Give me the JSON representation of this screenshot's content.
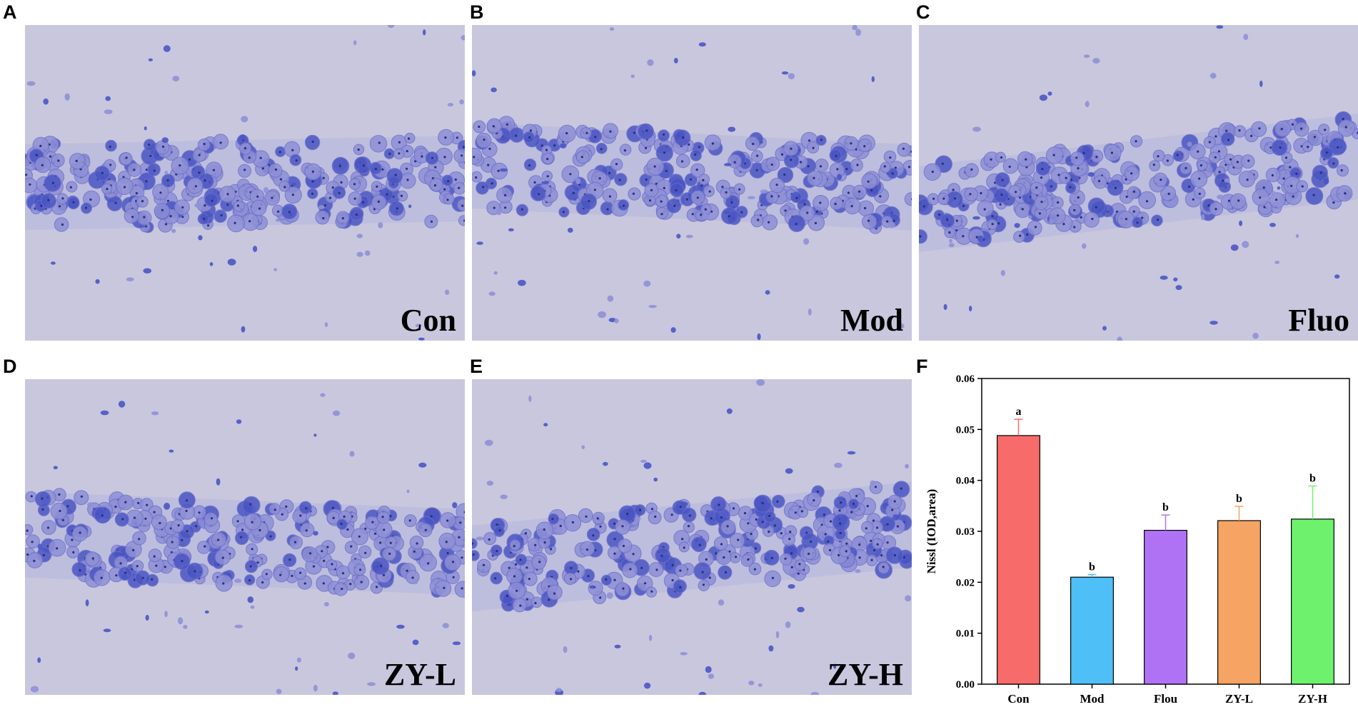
{
  "panels": [
    {
      "letter": "A",
      "label": "Con"
    },
    {
      "letter": "B",
      "label": "Mod"
    },
    {
      "letter": "C",
      "label": "Fluo"
    },
    {
      "letter": "D",
      "label": "ZY-L"
    },
    {
      "letter": "E",
      "label": "ZY-H"
    }
  ],
  "chart_panel_letter": "F",
  "colors": {
    "tissue_background": "#c8c7dd",
    "cell_body": "#8f90d6",
    "cell_dark": "#4a55c4",
    "nucleolus": "#2a2f7a"
  },
  "chart_data": {
    "type": "bar",
    "title": "",
    "xlabel": "",
    "ylabel": "Nissl (IOD,area)",
    "categories": [
      "Con",
      "Mod",
      "Flou",
      "ZY-L",
      "ZY-H"
    ],
    "values": [
      0.0488,
      0.021,
      0.0302,
      0.0321,
      0.0324
    ],
    "errors": [
      0.0032,
      0.0005,
      0.003,
      0.0028,
      0.0065
    ],
    "significance": [
      "a",
      "b",
      "b",
      "b",
      "b"
    ],
    "bar_colors": [
      "#f76b6b",
      "#4fbff7",
      "#b072f5",
      "#f5a463",
      "#6ef26e"
    ],
    "ylim": [
      0,
      0.06
    ],
    "yticks": [
      "0.00",
      "0.01",
      "0.02",
      "0.03",
      "0.04",
      "0.05",
      "0.06"
    ],
    "grid": false,
    "legend": "none"
  }
}
